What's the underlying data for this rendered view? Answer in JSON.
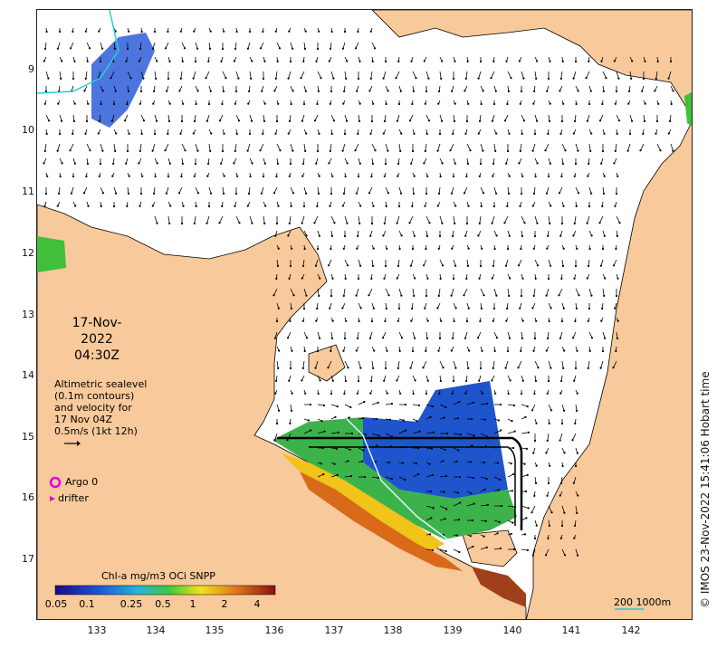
{
  "timestamp": {
    "date": "17-Nov-2022",
    "time": "04:30Z"
  },
  "altimetry_note": {
    "line1": "Altimetric sealevel",
    "line2": "(0.1m contours)",
    "line3": "and velocity for",
    "line4": "17 Nov 04Z",
    "line5": "0.5m/s (1kt 12h)"
  },
  "legend": {
    "argo": "Argo 0",
    "drifter": "drifter"
  },
  "colorbar": {
    "title": "Chl-a mg/m3 OCi SNPP",
    "tick_labels": [
      "0.05",
      "0.1",
      "0.25",
      "0.5",
      "1",
      "2",
      "4"
    ]
  },
  "scalebar": {
    "label": "200  1000m"
  },
  "credit": "© IMOS 23-Nov-2022 15:41:06 Hobart time",
  "axes": {
    "x_ticks": [
      "133",
      "134",
      "135",
      "136",
      "137",
      "138",
      "139",
      "140",
      "141",
      "142"
    ],
    "y_ticks": [
      "9",
      "10",
      "11",
      "12",
      "13",
      "14",
      "15",
      "16",
      "17"
    ]
  },
  "colors": {
    "land": "#F8C99A",
    "ocean": "#FFFFFF",
    "argo": "#E000E0",
    "drifter": "#E000E0",
    "scalebar": "#2EC4C4"
  }
}
